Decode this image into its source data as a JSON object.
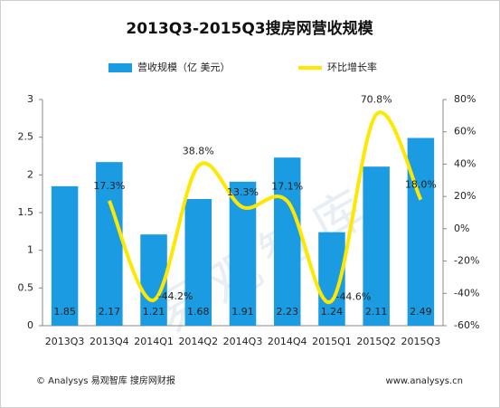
{
  "chart_data": {
    "type": "bar_line",
    "title": "2013Q3-2015Q3搜房网营收规模",
    "categories": [
      "2013Q3",
      "2013Q4",
      "2014Q1",
      "2014Q2",
      "2014Q3",
      "2014Q4",
      "2015Q1",
      "2015Q2",
      "2015Q3"
    ],
    "series": [
      {
        "name": "营收规模（亿 美元）",
        "type": "bar",
        "color": "#1b9ce2",
        "values": [
          1.85,
          2.17,
          1.21,
          1.68,
          1.91,
          2.23,
          1.24,
          2.11,
          2.49
        ]
      },
      {
        "name": "环比增长率",
        "type": "line",
        "axis": "y2",
        "color": "#ffe800",
        "values": [
          null,
          17.3,
          -44.2,
          38.8,
          13.3,
          17.1,
          -44.6,
          70.8,
          18.0
        ],
        "value_labels": [
          null,
          "17.3%",
          "-44.2%",
          "38.8%",
          "13.3%",
          "17.1%",
          "-44.6%",
          "70.8%",
          "18.0%"
        ]
      }
    ],
    "ylim": [
      0,
      3
    ],
    "yticks": [
      0,
      0.5,
      1,
      1.5,
      2,
      2.5,
      3
    ],
    "y2lim": [
      -60,
      80
    ],
    "y2ticks": [
      {
        "value": -60,
        "label": "-60%"
      },
      {
        "value": -40,
        "label": "-40%"
      },
      {
        "value": -20,
        "label": "-20%"
      },
      {
        "value": 0,
        "label": "0%"
      },
      {
        "value": 20,
        "label": "20%"
      },
      {
        "value": 40,
        "label": "40%"
      },
      {
        "value": 60,
        "label": "60%"
      },
      {
        "value": 80,
        "label": "80%"
      }
    ],
    "legend": "top",
    "watermark": "易观智库",
    "footer_left": "© Analysys 易观智库  搜房网财报",
    "footer_right": "www.analysys.cn"
  }
}
